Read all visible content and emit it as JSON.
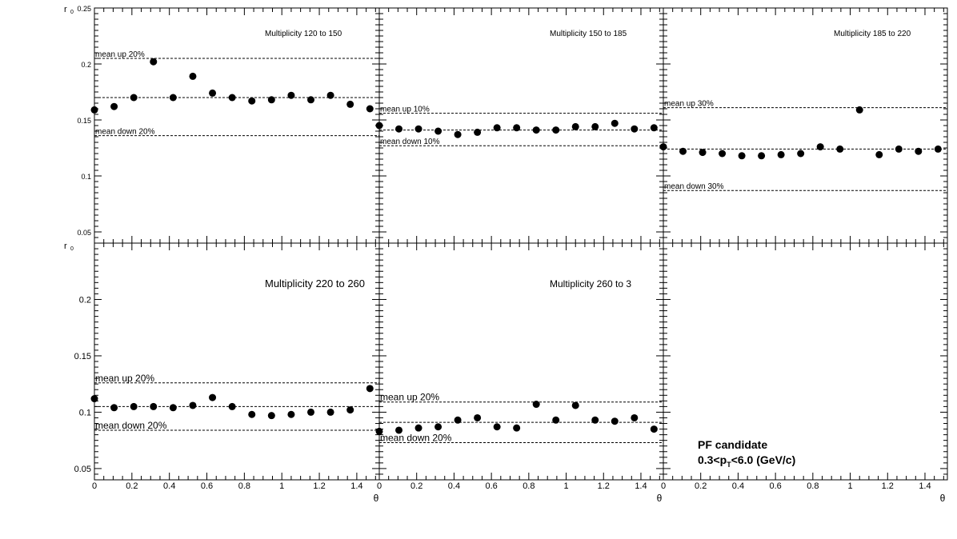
{
  "y_axis_label": "r",
  "y_axis_label_sub": "0",
  "x_axis_label": "θ",
  "footer": {
    "line1": "PF candidate",
    "line2_pre": "0.3<p",
    "line2_sub": "T",
    "line2_post": "<6.0 (GeV/c)"
  },
  "chart_data": [
    {
      "type": "scatter",
      "title": "Multiplicity 120 to 150",
      "xlim": [
        0,
        1.52
      ],
      "ylim": [
        0.04,
        0.25
      ],
      "x": [
        0,
        0.105,
        0.21,
        0.315,
        0.42,
        0.525,
        0.63,
        0.735,
        0.84,
        0.945,
        1.05,
        1.155,
        1.26,
        1.365,
        1.47
      ],
      "series": [
        {
          "values": [
            0.159,
            0.162,
            0.17,
            0.202,
            0.17,
            0.189,
            0.174,
            0.17,
            0.167,
            0.168,
            0.172,
            0.168,
            0.172,
            0.164,
            0.16
          ]
        }
      ],
      "mean": 0.17,
      "upper": {
        "value": 0.205,
        "label": "mean up 20%"
      },
      "lower": {
        "value": 0.136,
        "label": "mean down 20%"
      },
      "yticks": [
        "0.05",
        "0.1",
        "0.15",
        "0.2",
        "0.25"
      ],
      "xticks": []
    },
    {
      "type": "scatter",
      "title": "Multiplicity 150 to 185",
      "xlim": [
        0,
        1.52
      ],
      "ylim": [
        0.04,
        0.25
      ],
      "x": [
        0,
        0.105,
        0.21,
        0.315,
        0.42,
        0.525,
        0.63,
        0.735,
        0.84,
        0.945,
        1.05,
        1.155,
        1.26,
        1.365,
        1.47
      ],
      "series": [
        {
          "values": [
            0.145,
            0.142,
            0.142,
            0.14,
            0.137,
            0.139,
            0.143,
            0.143,
            0.141,
            0.141,
            0.144,
            0.144,
            0.147,
            0.142,
            0.143
          ]
        }
      ],
      "mean": 0.141,
      "upper": {
        "value": 0.156,
        "label": "mean up 10%"
      },
      "lower": {
        "value": 0.127,
        "label": "mean down 10%"
      },
      "yticks": [],
      "xticks": []
    },
    {
      "type": "scatter",
      "title": "Multiplicity 185 to 220",
      "xlim": [
        0,
        1.52
      ],
      "ylim": [
        0.04,
        0.25
      ],
      "x": [
        0,
        0.105,
        0.21,
        0.315,
        0.42,
        0.525,
        0.63,
        0.735,
        0.84,
        0.945,
        1.05,
        1.155,
        1.26,
        1.365,
        1.47
      ],
      "series": [
        {
          "values": [
            0.126,
            0.122,
            0.121,
            0.12,
            0.118,
            0.118,
            0.119,
            0.12,
            0.126,
            0.124,
            0.159,
            0.119,
            0.124,
            0.122,
            0.124
          ]
        }
      ],
      "mean": 0.124,
      "upper": {
        "value": 0.161,
        "label": "mean up 30%"
      },
      "lower": {
        "value": 0.087,
        "label": "mean down 30%"
      },
      "yticks": [],
      "xticks": []
    },
    {
      "type": "scatter",
      "title": "Multiplicity 220 to 260",
      "xlim": [
        0,
        1.52
      ],
      "ylim": [
        0.04,
        0.25
      ],
      "x": [
        0,
        0.105,
        0.21,
        0.315,
        0.42,
        0.525,
        0.63,
        0.735,
        0.84,
        0.945,
        1.05,
        1.155,
        1.26,
        1.365,
        1.47
      ],
      "series": [
        {
          "values": [
            0.112,
            0.104,
            0.105,
            0.105,
            0.104,
            0.106,
            0.113,
            0.105,
            0.098,
            0.097,
            0.098,
            0.1,
            0.1,
            0.102,
            0.121
          ]
        }
      ],
      "mean": 0.105,
      "upper": {
        "value": 0.126,
        "label": "mean up 20%"
      },
      "lower": {
        "value": 0.084,
        "label": "mean down 20%"
      },
      "yticks": [
        "0.05",
        "0.1",
        "0.15",
        "0.2"
      ],
      "xticks": [
        "0",
        "0.2",
        "0.4",
        "0.6",
        "0.8",
        "1",
        "1.2",
        "1.4"
      ]
    },
    {
      "type": "scatter",
      "title": "Multiplicity 260 to 3",
      "xlim": [
        0,
        1.52
      ],
      "ylim": [
        0.04,
        0.25
      ],
      "x": [
        0,
        0.105,
        0.21,
        0.315,
        0.42,
        0.525,
        0.63,
        0.735,
        0.84,
        0.945,
        1.05,
        1.155,
        1.26,
        1.365,
        1.47
      ],
      "series": [
        {
          "values": [
            0.083,
            0.084,
            0.086,
            0.087,
            0.093,
            0.095,
            0.087,
            0.086,
            0.107,
            0.093,
            0.106,
            0.093,
            0.092,
            0.095,
            0.085
          ]
        }
      ],
      "mean": 0.091,
      "upper": {
        "value": 0.109,
        "label": "mean up 20%"
      },
      "lower": {
        "value": 0.073,
        "label": "mean down 20%"
      },
      "yticks": [],
      "xticks": [
        "0",
        "0.2",
        "0.4",
        "0.6",
        "0.8",
        "1",
        "1.2",
        "1.4"
      ]
    },
    {
      "type": "scatter",
      "title": "",
      "xlim": [
        0,
        1.52
      ],
      "ylim": [
        0.04,
        0.25
      ],
      "x": [],
      "series": [],
      "yticks": [],
      "xticks": [
        "0",
        "0.2",
        "0.4",
        "0.6",
        "0.8",
        "1",
        "1.2",
        "1.4"
      ]
    }
  ]
}
